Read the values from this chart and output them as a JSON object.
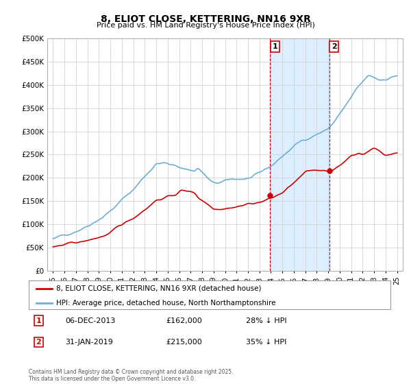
{
  "title": "8, ELIOT CLOSE, KETTERING, NN16 9XR",
  "subtitle": "Price paid vs. HM Land Registry's House Price Index (HPI)",
  "ylim": [
    0,
    500000
  ],
  "yticks": [
    0,
    50000,
    100000,
    150000,
    200000,
    250000,
    300000,
    350000,
    400000,
    450000,
    500000
  ],
  "ytick_labels": [
    "£0",
    "£50K",
    "£100K",
    "£150K",
    "£200K",
    "£250K",
    "£300K",
    "£350K",
    "£400K",
    "£450K",
    "£500K"
  ],
  "bg_color": "#ffffff",
  "grid_color": "#cccccc",
  "hpi_color": "#6baed6",
  "price_color": "#cc0000",
  "shade_color": "#ddeeff",
  "transaction1_price": 162000,
  "transaction1_hpi_pct": "28% ↓ HPI",
  "transaction1_date": "06-DEC-2013",
  "transaction2_price": 215000,
  "transaction2_hpi_pct": "35% ↓ HPI",
  "transaction2_date": "31-JAN-2019",
  "transaction1_x": 2013.92,
  "transaction2_x": 2019.08,
  "legend_label_price": "8, ELIOT CLOSE, KETTERING, NN16 9XR (detached house)",
  "legend_label_hpi": "HPI: Average price, detached house, North Northamptonshire",
  "footer": "Contains HM Land Registry data © Crown copyright and database right 2025.\nThis data is licensed under the Open Government Licence v3.0.",
  "xlim": [
    1994.5,
    2025.5
  ],
  "xtick_years": [
    1995,
    1996,
    1997,
    1998,
    1999,
    2000,
    2001,
    2002,
    2003,
    2004,
    2005,
    2006,
    2007,
    2008,
    2009,
    2010,
    2011,
    2012,
    2013,
    2014,
    2015,
    2016,
    2017,
    2018,
    2019,
    2020,
    2021,
    2022,
    2023,
    2024,
    2025
  ]
}
